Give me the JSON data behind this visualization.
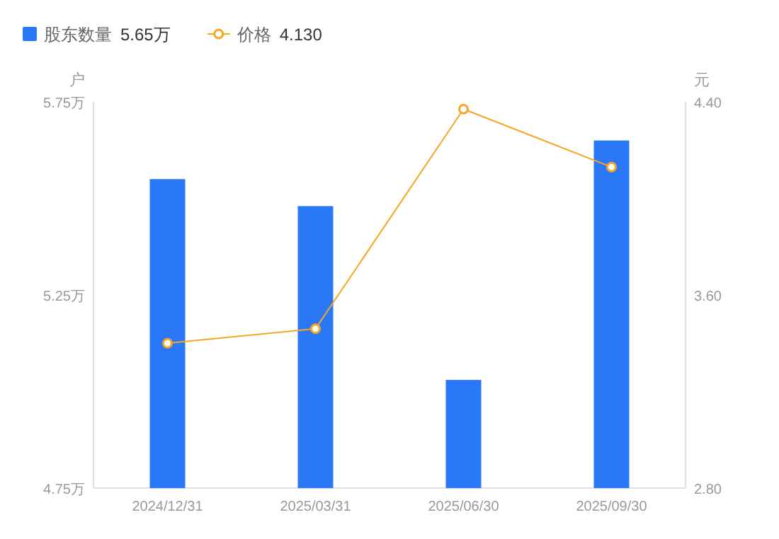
{
  "chart_data": {
    "type": "bar",
    "categories": [
      "2024/12/31",
      "2025/03/31",
      "2025/06/30",
      "2025/09/30"
    ],
    "series": [
      {
        "name": "股东数量",
        "color": "#2a77f7",
        "values": [
          5.55,
          5.48,
          5.03,
          5.65
        ]
      },
      {
        "name": "价格",
        "type": "line",
        "axis": "y2",
        "color": "#f6a623",
        "values": [
          3.4,
          3.46,
          4.37,
          4.13
        ]
      }
    ],
    "ylabel": "户",
    "y2label": "元",
    "ylim": [
      4.75,
      5.75
    ],
    "yticks": [
      {
        "value": 4.75,
        "label": "4.75万"
      },
      {
        "value": 5.25,
        "label": "5.25万"
      },
      {
        "value": 5.75,
        "label": "5.75万"
      }
    ],
    "y2lim": [
      2.8,
      4.4
    ],
    "y2ticks": [
      {
        "value": 2.8,
        "label": "2.80"
      },
      {
        "value": 3.6,
        "label": "3.60"
      },
      {
        "value": 4.4,
        "label": "4.40"
      }
    ],
    "annotations": [
      "5.65万",
      "4.130"
    ],
    "legend": "top left",
    "marker": "circle",
    "line_style": "solid"
  }
}
